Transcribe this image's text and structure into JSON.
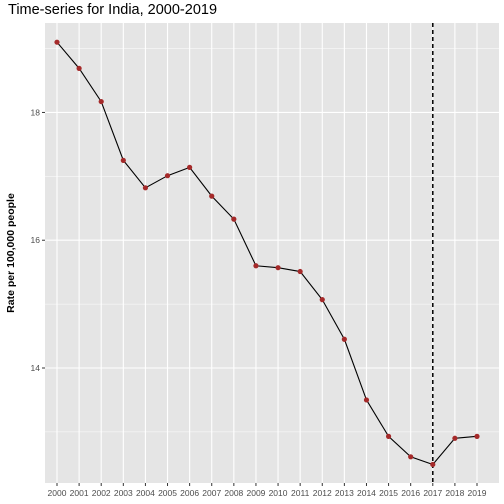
{
  "chart_data": {
    "type": "line",
    "title": "Time-series for India, 2000-2019",
    "xlabel": "",
    "ylabel": "Rate per 100,000 people",
    "x": [
      2000,
      2001,
      2002,
      2003,
      2004,
      2005,
      2006,
      2007,
      2008,
      2009,
      2010,
      2011,
      2012,
      2013,
      2014,
      2015,
      2016,
      2017,
      2018,
      2019
    ],
    "x_tick_labels": [
      "2000",
      "2001",
      "2002",
      "2003",
      "2004",
      "2005",
      "2006",
      "2007",
      "2008",
      "2009",
      "2010",
      "2011",
      "2012",
      "2013",
      "2014",
      "2015",
      "2016",
      "2017",
      "2018",
      "2019"
    ],
    "series": [
      {
        "values": [
          19.1,
          18.69,
          18.17,
          17.25,
          16.82,
          17.01,
          17.14,
          16.69,
          16.33,
          15.6,
          15.57,
          15.51,
          15.07,
          14.45,
          13.5,
          12.93,
          12.61,
          12.49,
          12.9,
          12.93
        ]
      }
    ],
    "y_ticks": [
      14,
      16,
      18
    ],
    "ylim": [
      12.2,
      19.4
    ],
    "vline_x": 2017,
    "grid": true,
    "colors": {
      "panel_background": "#e5e5e5",
      "grid": "#ffffff",
      "line": "#000000",
      "point": "#a52a2a",
      "vline": "#000000"
    }
  }
}
